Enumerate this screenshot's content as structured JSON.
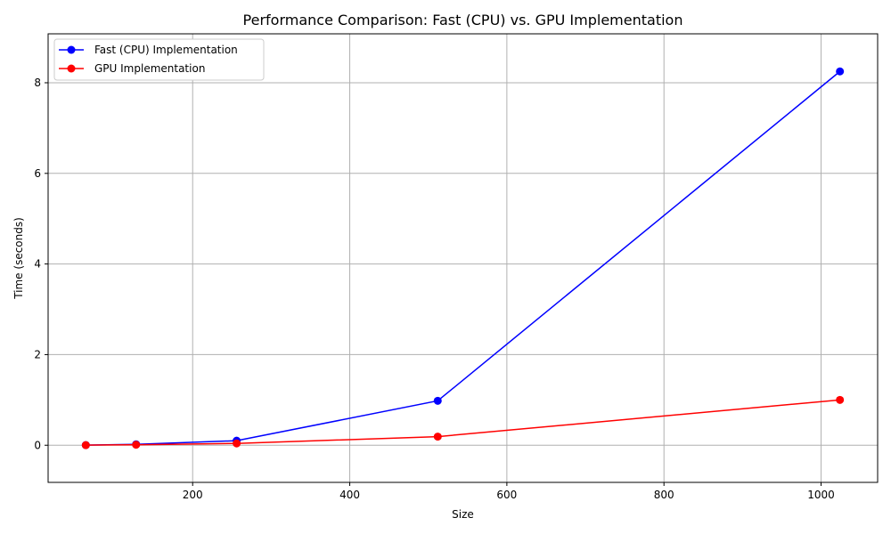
{
  "chart_data": {
    "type": "line",
    "title": "Performance Comparison: Fast (CPU) vs. GPU Implementation",
    "xlabel": "Size",
    "ylabel": "Time (seconds)",
    "xlim": [
      16,
      1072
    ],
    "ylim": [
      -0.82,
      9.08
    ],
    "xticks": [
      200,
      400,
      600,
      800,
      1000
    ],
    "yticks": [
      0,
      2,
      4,
      6,
      8
    ],
    "xtick_labels": [
      "200",
      "400",
      "600",
      "800",
      "1000"
    ],
    "ytick_labels": [
      "0",
      "2",
      "4",
      "6",
      "8"
    ],
    "grid": true,
    "legend_position": "top-left",
    "x": [
      64,
      128,
      256,
      512,
      1024
    ],
    "series": [
      {
        "name": "Fast (CPU) Implementation",
        "color": "#0000ff",
        "values": [
          0.003,
          0.02,
          0.1,
          0.98,
          8.25
        ]
      },
      {
        "name": "GPU Implementation",
        "color": "#ff0000",
        "values": [
          0.002,
          0.01,
          0.04,
          0.19,
          1.0
        ]
      }
    ]
  }
}
